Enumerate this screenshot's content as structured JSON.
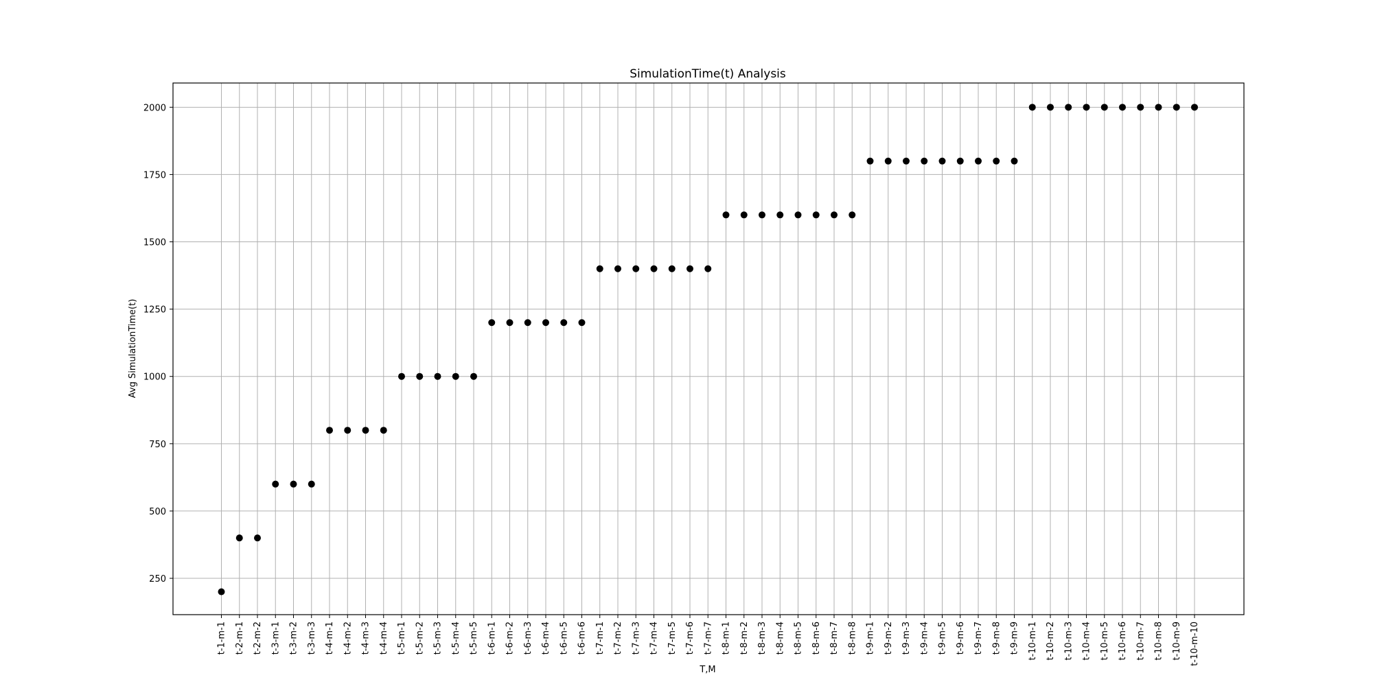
{
  "chart_data": {
    "type": "scatter",
    "title": "SimulationTime(t) Analysis",
    "xlabel": "T,M",
    "ylabel": "Avg SimulationTime(t)",
    "grid": true,
    "marker_color": "#000000",
    "ylim": [
      115,
      2090
    ],
    "yticks": [
      250,
      500,
      750,
      1000,
      1250,
      1500,
      1750,
      2000
    ],
    "categories": [
      "t-1-m-1",
      "t-2-m-1",
      "t-2-m-2",
      "t-3-m-1",
      "t-3-m-2",
      "t-3-m-3",
      "t-4-m-1",
      "t-4-m-2",
      "t-4-m-3",
      "t-4-m-4",
      "t-5-m-1",
      "t-5-m-2",
      "t-5-m-3",
      "t-5-m-4",
      "t-5-m-5",
      "t-6-m-1",
      "t-6-m-2",
      "t-6-m-3",
      "t-6-m-4",
      "t-6-m-5",
      "t-6-m-6",
      "t-7-m-1",
      "t-7-m-2",
      "t-7-m-3",
      "t-7-m-4",
      "t-7-m-5",
      "t-7-m-6",
      "t-7-m-7",
      "t-8-m-1",
      "t-8-m-2",
      "t-8-m-3",
      "t-8-m-4",
      "t-8-m-5",
      "t-8-m-6",
      "t-8-m-7",
      "t-8-m-8",
      "t-9-m-1",
      "t-9-m-2",
      "t-9-m-3",
      "t-9-m-4",
      "t-9-m-5",
      "t-9-m-6",
      "t-9-m-7",
      "t-9-m-8",
      "t-9-m-9",
      "t-10-m-1",
      "t-10-m-2",
      "t-10-m-3",
      "t-10-m-4",
      "t-10-m-5",
      "t-10-m-6",
      "t-10-m-7",
      "t-10-m-8",
      "t-10-m-9",
      "t-10-m-10"
    ],
    "values": [
      200,
      400,
      400,
      600,
      600,
      600,
      800,
      800,
      800,
      800,
      1000,
      1000,
      1000,
      1000,
      1000,
      1200,
      1200,
      1200,
      1200,
      1200,
      1200,
      1400,
      1400,
      1400,
      1400,
      1400,
      1400,
      1400,
      1600,
      1600,
      1600,
      1600,
      1600,
      1600,
      1600,
      1600,
      1800,
      1800,
      1800,
      1800,
      1800,
      1800,
      1800,
      1800,
      1800,
      2000,
      2000,
      2000,
      2000,
      2000,
      2000,
      2000,
      2000,
      2000,
      2000
    ]
  }
}
